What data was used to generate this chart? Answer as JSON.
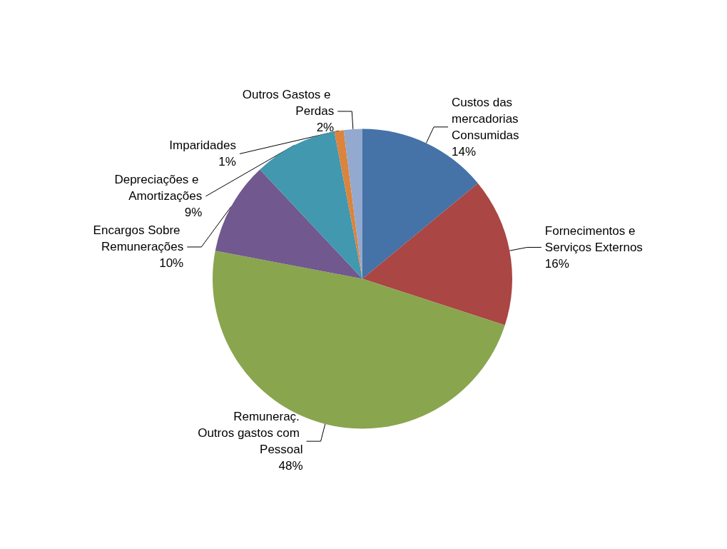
{
  "chart_data": {
    "type": "pie",
    "categories": [
      "Custos das mercadorias Consumidas",
      "Fornecimentos e Serviços Externos",
      "Remuneraç. Outros gastos com Pessoal",
      "Encargos Sobre Remunerações",
      "Depreciações e Amortizações",
      "Imparidades",
      "Outros Gastos e Perdas"
    ],
    "values": [
      14,
      16,
      48,
      10,
      9,
      1,
      2
    ],
    "value_labels": [
      "14%",
      "16%",
      "48%",
      "10%",
      "9%",
      "1%",
      "2%"
    ],
    "colors": [
      "#4572a7",
      "#aa4643",
      "#89a54e",
      "#71588f",
      "#4198af",
      "#db843d",
      "#93a9cf"
    ],
    "legend": false
  }
}
